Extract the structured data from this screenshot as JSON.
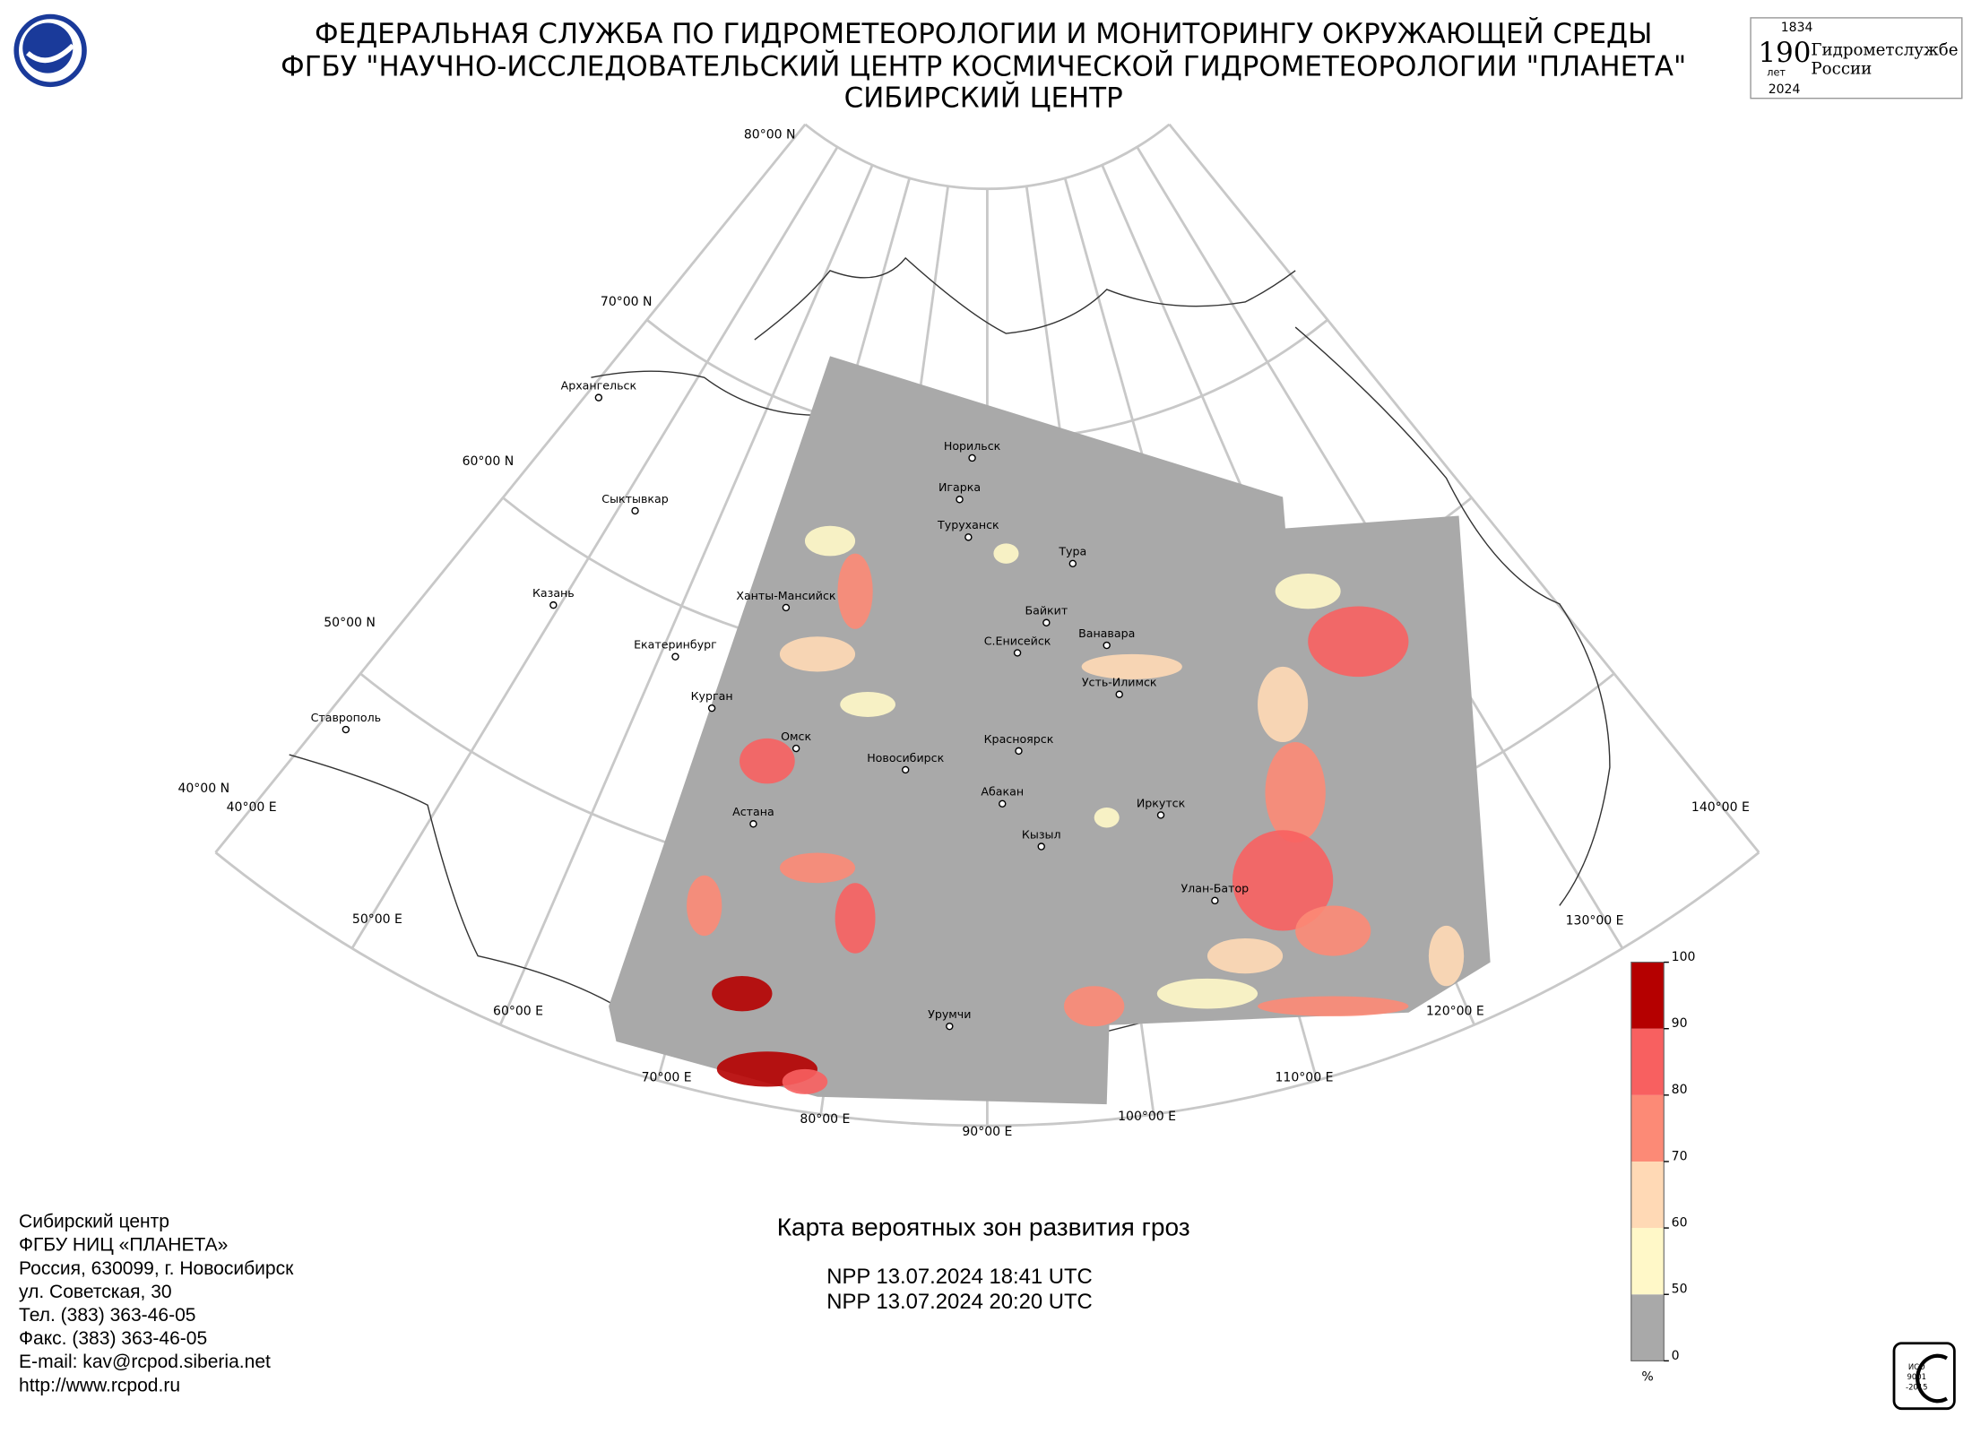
{
  "header": {
    "lines": [
      "ФЕДЕРАЛЬНАЯ СЛУЖБА ПО ГИДРОМЕТЕОРОЛОГИИ И МОНИТОРИНГУ ОКРУЖАЮЩЕЙ СРЕДЫ",
      "ФГБУ \"НАУЧНО-ИССЛЕДОВАТЕЛЬСКИЙ ЦЕНТР КОСМИЧЕСКОЙ ГИДРОМЕТЕОРОЛОГИИ \"ПЛАНЕТА\"",
      "СИБИРСКИЙ ЦЕНТР"
    ],
    "anniversary": {
      "start": "1834",
      "number": "190",
      "years": "лет",
      "text1": "Гидрометслужбе",
      "text2": "России",
      "end": "2024"
    }
  },
  "map": {
    "lat_labels": [
      "80°00 N",
      "70°00 N",
      "60°00 N",
      "50°00 N",
      "40°00 N"
    ],
    "lon_labels": [
      "40°00 E",
      "50°00 E",
      "60°00 E",
      "70°00 E",
      "80°00 E",
      "90°00 E",
      "100°00 E",
      "110°00 E",
      "120°00 E",
      "130°00 E",
      "140°00 E"
    ],
    "cities": [
      "Архангельск",
      "Сыктывкар",
      "Казань",
      "Екатеринбург",
      "Курган",
      "Ставрополь",
      "Ханты-Мансийск",
      "Омск",
      "Новосибирск",
      "Астана",
      "Норильск",
      "Игарка",
      "Туруханск",
      "Тура",
      "Байкит",
      "Ванавара",
      "С.Енисейск",
      "Усть-Илимск",
      "Красноярск",
      "Абакан",
      "Иркутск",
      "Кызыл",
      "Улан-Батор",
      "Урумчи"
    ]
  },
  "legend": {
    "ticks": [
      0,
      50,
      60,
      70,
      80,
      90,
      100
    ],
    "colors": [
      "#a9a9a9",
      "#fff8c8",
      "#ffd9b5",
      "#fc8a76",
      "#f86060",
      "#b50000"
    ],
    "unit": "%"
  },
  "title": "Карта вероятных зон развития гроз",
  "passes": [
    "NPP 13.07.2024  18:41 UTC",
    "NPP 13.07.2024  20:20 UTC"
  ],
  "contacts": [
    "Сибирский центр",
    "ФГБУ НИЦ «ПЛАНЕТА»",
    "Россия, 630099, г. Новосибирск",
    "ул. Советская, 30",
    "Тел. (383) 363-46-05",
    "Факс. (383) 363-46-05",
    "E-mail: kav@rcpod.siberia.net",
    "http://www.rcpod.ru"
  ],
  "iso": [
    "ИСО",
    "9001",
    "-2015"
  ]
}
